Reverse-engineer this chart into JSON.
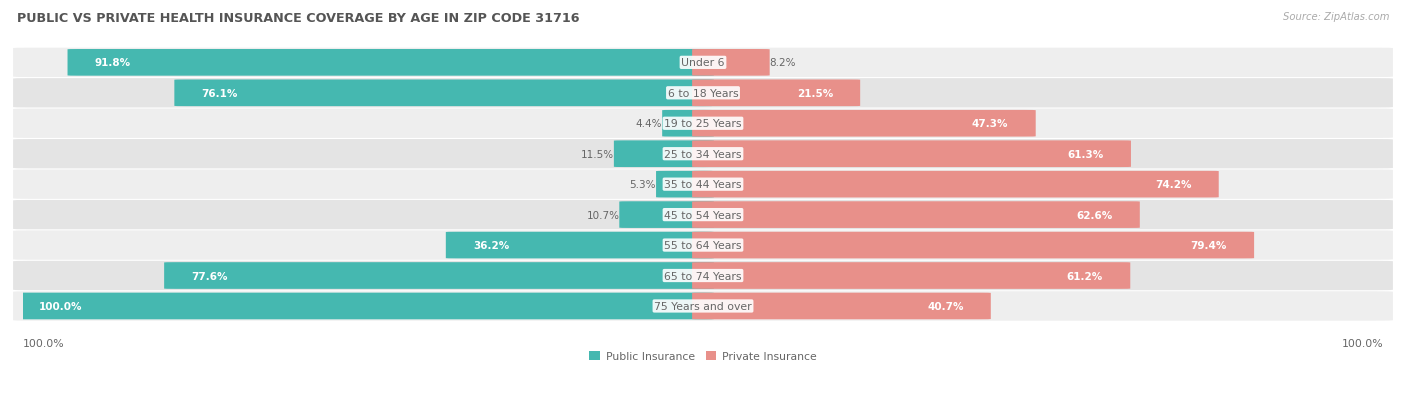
{
  "title": "PUBLIC VS PRIVATE HEALTH INSURANCE COVERAGE BY AGE IN ZIP CODE 31716",
  "source": "Source: ZipAtlas.com",
  "categories": [
    "Under 6",
    "6 to 18 Years",
    "19 to 25 Years",
    "25 to 34 Years",
    "35 to 44 Years",
    "45 to 54 Years",
    "55 to 64 Years",
    "65 to 74 Years",
    "75 Years and over"
  ],
  "public_values": [
    91.8,
    76.1,
    4.4,
    11.5,
    5.3,
    10.7,
    36.2,
    77.6,
    100.0
  ],
  "private_values": [
    8.2,
    21.5,
    47.3,
    61.3,
    74.2,
    62.6,
    79.4,
    61.2,
    40.7
  ],
  "public_color": "#45b8b0",
  "private_color": "#e8908a",
  "row_bg_even": "#eeeeee",
  "row_bg_odd": "#e4e4e4",
  "title_color": "#555555",
  "text_color_dark": "#666666",
  "text_color_white": "#ffffff",
  "figsize": [
    14.06,
    4.14
  ],
  "dpi": 100
}
